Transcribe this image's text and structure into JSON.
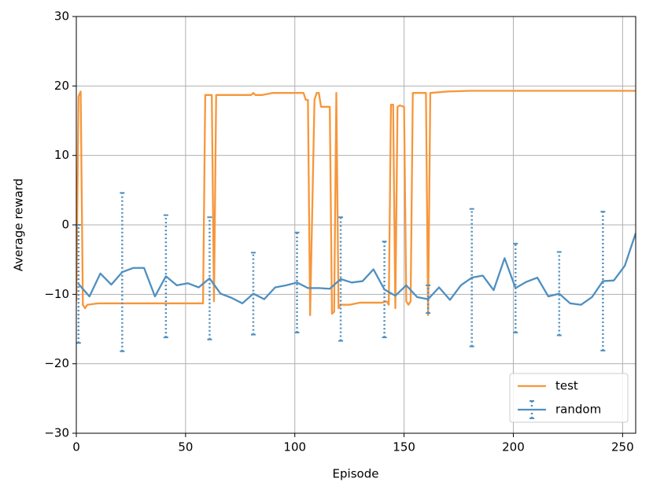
{
  "chart_data": {
    "type": "line",
    "xlabel": "Episode",
    "ylabel": "Average reward",
    "xlim": [
      0,
      256
    ],
    "ylim": [
      -30,
      30
    ],
    "xticks": [
      0,
      50,
      100,
      150,
      200,
      250
    ],
    "yticks": [
      {
        "value": -30,
        "label": "−30"
      },
      {
        "value": -20,
        "label": "−20"
      },
      {
        "value": -10,
        "label": "−10"
      },
      0,
      10,
      20,
      30
    ],
    "grid": true,
    "legend": "lower right",
    "series": [
      {
        "name": "test",
        "color": "#f7963b",
        "x": [
          0,
          1,
          2,
          3,
          4,
          5,
          10,
          20,
          30,
          40,
          50,
          58,
          59,
          62,
          63,
          64,
          66,
          80,
          81,
          82,
          85,
          90,
          95,
          100,
          104,
          105,
          106,
          107,
          109,
          110,
          111,
          112,
          116,
          117,
          118,
          119,
          120,
          121,
          125,
          130,
          140,
          142,
          143,
          144,
          145,
          146,
          147,
          148,
          150,
          151,
          152,
          153,
          154,
          158,
          159,
          160,
          161,
          162,
          170,
          180,
          200,
          256
        ],
        "values": [
          -11,
          18.5,
          19.2,
          -11.5,
          -12,
          -11.5,
          -11.3,
          -11.3,
          -11.3,
          -11.3,
          -11.3,
          -11.3,
          18.7,
          18.7,
          -11,
          18.7,
          18.7,
          18.7,
          19,
          18.7,
          18.7,
          19,
          19,
          19,
          19,
          18,
          18,
          -13,
          18,
          19,
          19,
          17,
          17,
          -12.8,
          -12.5,
          19,
          -12,
          -11.5,
          -11.5,
          -11.2,
          -11.2,
          -11,
          -11.5,
          17.3,
          17.3,
          -12,
          17,
          17.2,
          17,
          -11,
          -11.5,
          -11,
          19,
          19,
          19,
          19,
          -13,
          19,
          19.2,
          19.3,
          19.3,
          19.3
        ]
      },
      {
        "name": "random",
        "color": "#4f8fc0",
        "x": [
          1,
          6,
          11,
          16,
          21,
          26,
          31,
          36,
          41,
          46,
          51,
          56,
          61,
          66,
          71,
          76,
          81,
          86,
          91,
          96,
          101,
          106,
          111,
          116,
          121,
          126,
          131,
          136,
          141,
          146,
          151,
          156,
          161,
          166,
          171,
          176,
          181,
          186,
          191,
          196,
          201,
          206,
          211,
          216,
          221,
          226,
          231,
          236,
          241,
          246,
          251,
          256
        ],
        "values": [
          -8.5,
          -10.3,
          -7,
          -8.6,
          -6.8,
          -6.2,
          -6.2,
          -10.3,
          -7.4,
          -8.7,
          -8.4,
          -9,
          -7.7,
          -9.9,
          -10.5,
          -11.3,
          -9.9,
          -10.7,
          -9,
          -8.7,
          -8.3,
          -9.1,
          -9.1,
          -9.2,
          -7.8,
          -8.3,
          -8.1,
          -6.4,
          -9.3,
          -10.2,
          -8.7,
          -10.4,
          -10.7,
          -9,
          -10.8,
          -8.7,
          -7.6,
          -7.3,
          -9.4,
          -4.8,
          -9.1,
          -8.2,
          -7.6,
          -10.3,
          -9.9,
          -11.3,
          -11.5,
          -10.4,
          -8.1,
          -8,
          -5.9,
          -1.2
        ],
        "errors": [
          8.5,
          null,
          null,
          null,
          11.4,
          null,
          null,
          null,
          8.8,
          null,
          null,
          null,
          8.8,
          null,
          null,
          null,
          5.9,
          null,
          null,
          null,
          7.2,
          null,
          null,
          null,
          8.9,
          null,
          null,
          null,
          6.9,
          null,
          null,
          null,
          2,
          null,
          null,
          null,
          9.9,
          null,
          null,
          null,
          6.4,
          null,
          null,
          null,
          6,
          null,
          null,
          null,
          10,
          null,
          null,
          null
        ]
      }
    ]
  }
}
